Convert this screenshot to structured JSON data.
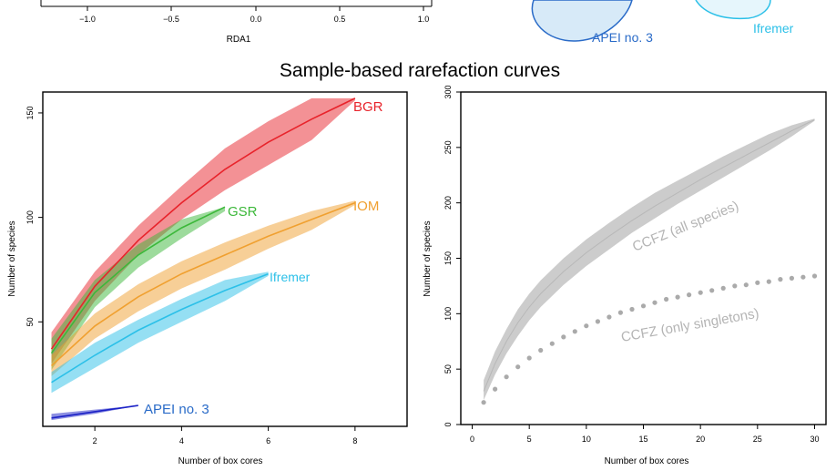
{
  "figure": {
    "section_title": "Sample-based rarefaction curves"
  },
  "colors": {
    "BGR": "#e8232b",
    "GSR": "#3cb83a",
    "IOM": "#f0a030",
    "Ifremer": "#2cc0e8",
    "APEI no. 3": "#1b21c6",
    "APEI_label": "#2a6bc8",
    "CCFZ": "#aaaaaa",
    "CCFZ_label": "#b4b4b4"
  },
  "top_fragment": {
    "xlabel": "RDA1",
    "xticks": [
      "−1.0",
      "−0.5",
      "0.0",
      "0.5",
      "1.0"
    ],
    "ellipse_labels": [
      "APEI no. 3",
      "Ifremer"
    ]
  },
  "chart_data": [
    {
      "type": "line",
      "title": "",
      "xlabel": "Number of box cores",
      "ylabel": "Number of species",
      "xlim": [
        0.8,
        9.2
      ],
      "ylim": [
        0,
        160
      ],
      "xticks": [
        2,
        4,
        6,
        8
      ],
      "yticks": [
        50,
        100,
        150
      ],
      "grid": false,
      "series": [
        {
          "name": "BGR",
          "x": [
            1,
            2,
            3,
            4,
            5,
            6,
            7,
            8
          ],
          "y": [
            37,
            67,
            89,
            107,
            123,
            136,
            147,
            157
          ],
          "lower": [
            30,
            60,
            82,
            99,
            113,
            125,
            137,
            156
          ],
          "upper": [
            45,
            74,
            96,
            115,
            133,
            146,
            157,
            157
          ]
        },
        {
          "name": "GSR",
          "x": [
            1,
            2,
            3,
            4,
            5
          ],
          "y": [
            35,
            64,
            82,
            95,
            105
          ],
          "lower": [
            27,
            57,
            76,
            90,
            103
          ],
          "upper": [
            42,
            70,
            87,
            99,
            105
          ]
        },
        {
          "name": "IOM",
          "x": [
            1,
            2,
            3,
            4,
            5,
            6,
            7,
            8
          ],
          "y": [
            29,
            48,
            62,
            73,
            82,
            91,
            99,
            107
          ],
          "lower": [
            24,
            42,
            55,
            66,
            75,
            85,
            94,
            106
          ],
          "upper": [
            34,
            54,
            68,
            79,
            88,
            96,
            103,
            108
          ]
        },
        {
          "name": "Ifremer",
          "x": [
            1,
            2,
            3,
            4,
            5,
            6
          ],
          "y": [
            21,
            34,
            46,
            56,
            65,
            73
          ],
          "lower": [
            16,
            28,
            40,
            50,
            60,
            72
          ],
          "upper": [
            26,
            40,
            51,
            61,
            70,
            74
          ]
        },
        {
          "name": "APEI no. 3",
          "x": [
            1,
            2,
            3
          ],
          "y": [
            4,
            7,
            10
          ],
          "lower": [
            3,
            6,
            10
          ],
          "upper": [
            6,
            8,
            10
          ]
        }
      ]
    },
    {
      "type": "line",
      "title": "",
      "xlabel": "Number of box cores",
      "ylabel": "Number of species",
      "xlim": [
        -1,
        31
      ],
      "ylim": [
        0,
        300
      ],
      "xticks": [
        0,
        5,
        10,
        15,
        20,
        25,
        30
      ],
      "yticks": [
        0,
        50,
        100,
        150,
        200,
        250,
        300
      ],
      "grid": false,
      "series": [
        {
          "name": "CCFZ (all species)",
          "style": "line-band",
          "x": [
            1,
            2,
            3,
            4,
            5,
            6,
            8,
            10,
            12,
            14,
            16,
            18,
            20,
            22,
            24,
            26,
            28,
            30
          ],
          "y": [
            30,
            55,
            75,
            92,
            106,
            118,
            138,
            155,
            170,
            184,
            197,
            209,
            221,
            232,
            243,
            254,
            265,
            275
          ],
          "lower": [
            22,
            45,
            64,
            80,
            94,
            106,
            126,
            143,
            158,
            173,
            186,
            199,
            211,
            223,
            235,
            247,
            260,
            274
          ],
          "upper": [
            40,
            66,
            86,
            104,
            118,
            130,
            150,
            167,
            182,
            196,
            209,
            220,
            231,
            242,
            252,
            262,
            270,
            276
          ]
        },
        {
          "name": "CCFZ (only singletons)",
          "style": "dotted",
          "x": [
            1,
            2,
            3,
            4,
            5,
            6,
            7,
            8,
            9,
            10,
            11,
            12,
            13,
            14,
            15,
            16,
            17,
            18,
            19,
            20,
            21,
            22,
            23,
            24,
            25,
            26,
            27,
            28,
            29,
            30
          ],
          "y": [
            20,
            32,
            43,
            52,
            60,
            67,
            73,
            79,
            84,
            89,
            93,
            97,
            101,
            104,
            107,
            110,
            113,
            115,
            117,
            119,
            121,
            123,
            125,
            126,
            128,
            129,
            131,
            132,
            133,
            134
          ]
        }
      ]
    }
  ]
}
